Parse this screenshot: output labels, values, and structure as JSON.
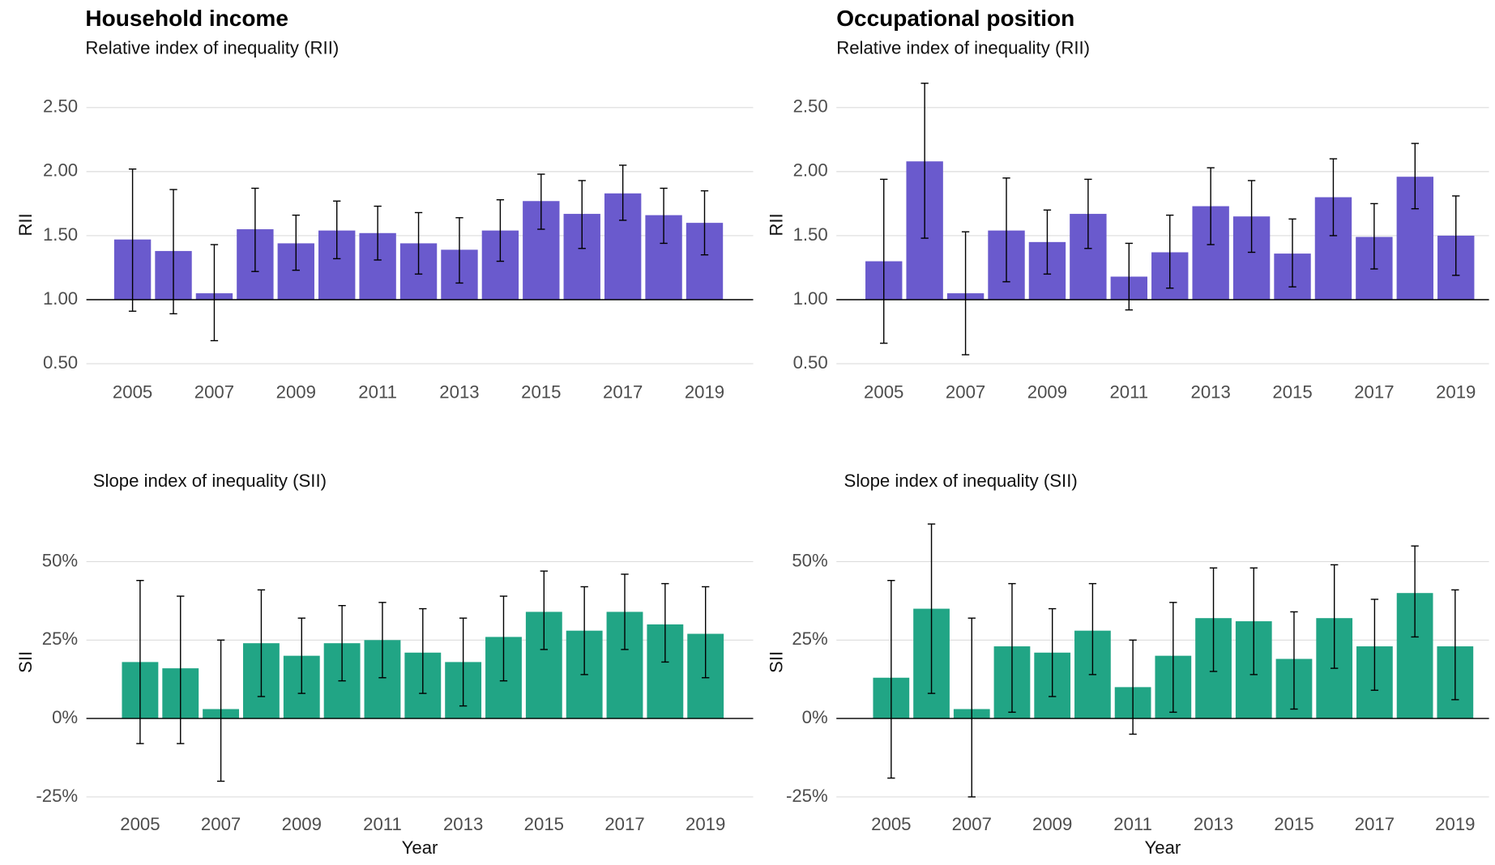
{
  "chart_data": [
    {
      "type": "bar",
      "title": "Household income",
      "subtitle": "Relative index of inequality (RII)",
      "ylabel": "RII",
      "x": [
        2005,
        2006,
        2007,
        2008,
        2009,
        2010,
        2011,
        2012,
        2013,
        2014,
        2015,
        2016,
        2017,
        2018,
        2019
      ],
      "values": [
        1.47,
        1.38,
        1.05,
        1.55,
        1.44,
        1.54,
        1.52,
        1.44,
        1.39,
        1.54,
        1.77,
        1.67,
        1.83,
        1.66,
        1.6
      ],
      "ci_low": [
        0.91,
        0.89,
        0.68,
        1.22,
        1.23,
        1.32,
        1.31,
        1.2,
        1.13,
        1.3,
        1.55,
        1.4,
        1.62,
        1.44,
        1.35
      ],
      "ci_high": [
        2.02,
        1.86,
        1.43,
        1.87,
        1.66,
        1.77,
        1.73,
        1.68,
        1.64,
        1.78,
        1.98,
        1.93,
        2.05,
        1.87,
        1.85
      ],
      "color": "#6a5acd",
      "baseline": 1,
      "xlim": [
        2003.87,
        2020.19
      ],
      "xticks": [
        2005,
        2007,
        2009,
        2011,
        2013,
        2015,
        2017,
        2019
      ],
      "ylim": [
        0.45,
        2.72
      ],
      "yticks": [
        {
          "value": 0.5,
          "label": "0.50"
        },
        {
          "value": 1,
          "label": "1.00"
        },
        {
          "value": 1.5,
          "label": "1.50"
        },
        {
          "value": 2,
          "label": "2.00"
        },
        {
          "value": 2.5,
          "label": "2.50"
        }
      ],
      "grid": true
    },
    {
      "type": "bar",
      "title": "Occupational position",
      "subtitle": "Relative index of inequality (RII)",
      "ylabel": "RII",
      "x": [
        2005,
        2006,
        2007,
        2008,
        2009,
        2010,
        2011,
        2012,
        2013,
        2014,
        2015,
        2016,
        2017,
        2018,
        2019
      ],
      "values": [
        1.3,
        2.08,
        1.05,
        1.54,
        1.45,
        1.67,
        1.18,
        1.37,
        1.73,
        1.65,
        1.36,
        1.8,
        1.49,
        1.96,
        1.5
      ],
      "ci_low": [
        0.66,
        1.48,
        0.57,
        1.14,
        1.2,
        1.4,
        0.92,
        1.09,
        1.43,
        1.37,
        1.1,
        1.5,
        1.24,
        1.71,
        1.19
      ],
      "ci_high": [
        1.94,
        2.69,
        1.53,
        1.95,
        1.7,
        1.94,
        1.44,
        1.66,
        2.03,
        1.93,
        1.63,
        2.1,
        1.75,
        2.22,
        1.81
      ],
      "color": "#6a5acd",
      "baseline": 1,
      "xlim": [
        2003.84,
        2019.81
      ],
      "xticks": [
        2005,
        2007,
        2009,
        2011,
        2013,
        2015,
        2017,
        2019
      ],
      "ylim": [
        0.45,
        2.72
      ],
      "yticks": [
        {
          "value": 0.5,
          "label": "0.50"
        },
        {
          "value": 1,
          "label": "1.00"
        },
        {
          "value": 1.5,
          "label": "1.50"
        },
        {
          "value": 2,
          "label": "2.00"
        },
        {
          "value": 2.5,
          "label": "2.50"
        }
      ],
      "grid": true
    },
    {
      "type": "bar",
      "subtitle": "Slope index of inequality (SII)",
      "ylabel": "SII",
      "xlabel": "Year",
      "x": [
        2005,
        2006,
        2007,
        2008,
        2009,
        2010,
        2011,
        2012,
        2013,
        2014,
        2015,
        2016,
        2017,
        2018,
        2019
      ],
      "values": [
        18,
        16,
        3,
        24,
        20,
        24,
        25,
        21,
        18,
        26,
        34,
        28,
        34,
        30,
        27
      ],
      "ci_low": [
        -8,
        -8,
        -20,
        7,
        8,
        12,
        13,
        8,
        4,
        12,
        22,
        14,
        22,
        18,
        13
      ],
      "ci_high": [
        44,
        39,
        25,
        41,
        32,
        36,
        37,
        35,
        32,
        39,
        47,
        42,
        46,
        43,
        42
      ],
      "color": "#21a585",
      "baseline": 0,
      "xlim": [
        2003.67,
        2020.18
      ],
      "xticks": [
        2005,
        2007,
        2009,
        2011,
        2013,
        2015,
        2017,
        2019
      ],
      "ylim": [
        -27,
        63
      ],
      "yticks": [
        {
          "value": -25,
          "label": "-25%"
        },
        {
          "value": 0,
          "label": "0%"
        },
        {
          "value": 25,
          "label": "25%"
        },
        {
          "value": 50,
          "label": "50%"
        }
      ],
      "grid": true
    },
    {
      "type": "bar",
      "subtitle": "Slope index of inequality (SII)",
      "ylabel": "SII",
      "xlabel": "Year",
      "x": [
        2005,
        2006,
        2007,
        2008,
        2009,
        2010,
        2011,
        2012,
        2013,
        2014,
        2015,
        2016,
        2017,
        2018,
        2019
      ],
      "values": [
        13,
        35,
        3,
        23,
        21,
        28,
        10,
        20,
        32,
        31,
        19,
        32,
        23,
        40,
        23
      ],
      "ci_low": [
        -19,
        8,
        -25,
        2,
        7,
        14,
        -5,
        2,
        15,
        14,
        3,
        16,
        9,
        26,
        6
      ],
      "ci_high": [
        44,
        62,
        32,
        43,
        35,
        43,
        25,
        37,
        48,
        48,
        34,
        49,
        38,
        55,
        41
      ],
      "color": "#21a585",
      "baseline": 0,
      "xlim": [
        2003.64,
        2019.84
      ],
      "xticks": [
        2005,
        2007,
        2009,
        2011,
        2013,
        2015,
        2017,
        2019
      ],
      "ylim": [
        -27,
        63
      ],
      "yticks": [
        {
          "value": -25,
          "label": "-25%"
        },
        {
          "value": 0,
          "label": "0%"
        },
        {
          "value": 25,
          "label": "25%"
        },
        {
          "value": 50,
          "label": "50%"
        }
      ],
      "grid": true
    }
  ]
}
